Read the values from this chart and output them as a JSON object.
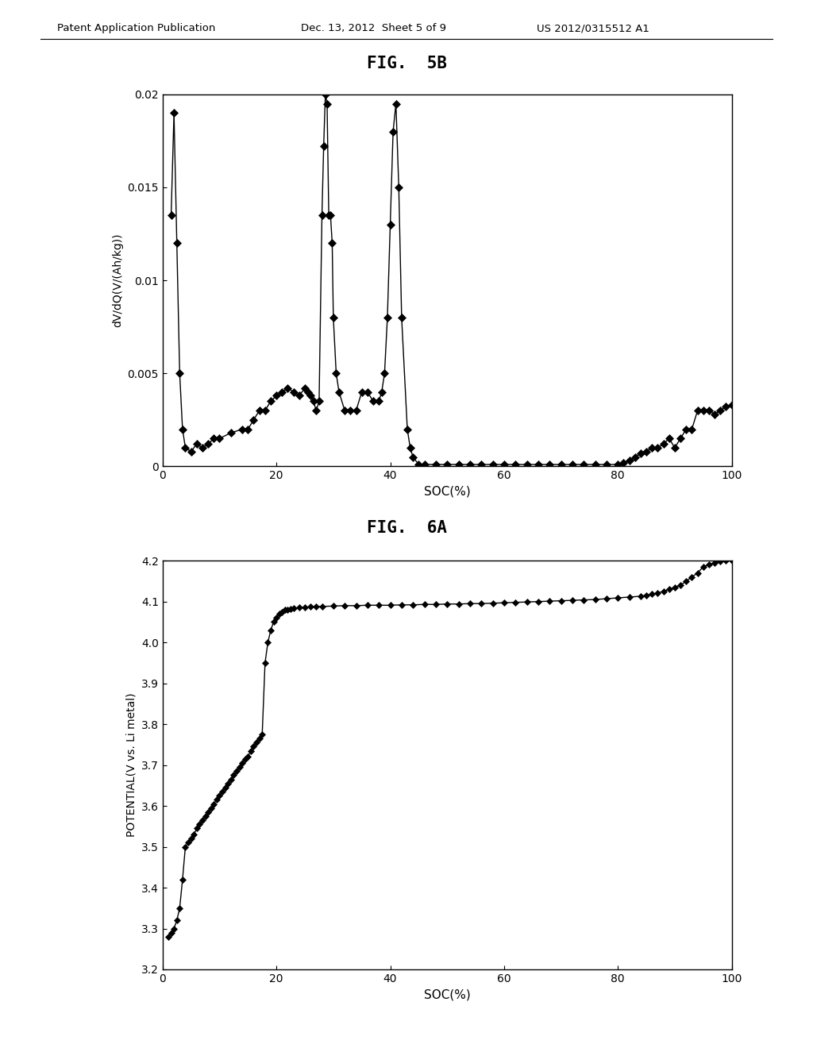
{
  "fig5b_title": "FIG.  5B",
  "fig6a_title": "FIG.  6A",
  "header_left": "Patent Application Publication",
  "header_mid": "Dec. 13, 2012  Sheet 5 of 9",
  "header_right": "US 2012/0315512 A1",
  "fig5b_xlabel": "SOC(%)",
  "fig5b_ylabel": "dV/dQ(V/(Ah/kg))",
  "fig5b_xlim": [
    0,
    100
  ],
  "fig5b_ylim": [
    0,
    0.02
  ],
  "fig5b_yticks": [
    0,
    0.005,
    0.01,
    0.015,
    0.02
  ],
  "fig5b_xticks": [
    0,
    20,
    40,
    60,
    80,
    100
  ],
  "fig6a_xlabel": "SOC(%)",
  "fig6a_ylabel": "POTENTIAL(V vs. Li metal)",
  "fig6a_xlim": [
    0,
    100
  ],
  "fig6a_ylim": [
    3.2,
    4.2
  ],
  "fig6a_yticks": [
    3.2,
    3.3,
    3.4,
    3.5,
    3.6,
    3.7,
    3.8,
    3.9,
    4.0,
    4.1,
    4.2
  ],
  "fig6a_xticks": [
    0,
    20,
    40,
    60,
    80,
    100
  ],
  "background_color": "#ffffff",
  "line_color": "#000000",
  "marker_color": "#000000",
  "text_color": "#000000",
  "fig5b_data": [
    [
      1.5,
      0.0135
    ],
    [
      2.0,
      0.019
    ],
    [
      2.5,
      0.012
    ],
    [
      3.0,
      0.005
    ],
    [
      3.5,
      0.002
    ],
    [
      4.0,
      0.001
    ],
    [
      5.0,
      0.0008
    ],
    [
      6.0,
      0.0012
    ],
    [
      7.0,
      0.001
    ],
    [
      8.0,
      0.0012
    ],
    [
      9.0,
      0.0015
    ],
    [
      10.0,
      0.0015
    ],
    [
      12.0,
      0.0018
    ],
    [
      14.0,
      0.002
    ],
    [
      15.0,
      0.002
    ],
    [
      16.0,
      0.0025
    ],
    [
      17.0,
      0.003
    ],
    [
      18.0,
      0.003
    ],
    [
      19.0,
      0.0035
    ],
    [
      20.0,
      0.0038
    ],
    [
      21.0,
      0.004
    ],
    [
      22.0,
      0.0042
    ],
    [
      23.0,
      0.004
    ],
    [
      24.0,
      0.0038
    ],
    [
      25.0,
      0.0042
    ],
    [
      25.5,
      0.004
    ],
    [
      26.0,
      0.0038
    ],
    [
      26.5,
      0.0035
    ],
    [
      27.0,
      0.003
    ],
    [
      27.5,
      0.0035
    ],
    [
      28.0,
      0.0135
    ],
    [
      28.3,
      0.0172
    ],
    [
      28.6,
      0.02
    ],
    [
      28.9,
      0.0195
    ],
    [
      29.2,
      0.0135
    ],
    [
      29.5,
      0.0135
    ],
    [
      29.8,
      0.012
    ],
    [
      30.0,
      0.008
    ],
    [
      30.5,
      0.005
    ],
    [
      31.0,
      0.004
    ],
    [
      32.0,
      0.003
    ],
    [
      33.0,
      0.003
    ],
    [
      34.0,
      0.003
    ],
    [
      35.0,
      0.004
    ],
    [
      36.0,
      0.004
    ],
    [
      37.0,
      0.0035
    ],
    [
      38.0,
      0.0035
    ],
    [
      38.5,
      0.004
    ],
    [
      39.0,
      0.005
    ],
    [
      39.5,
      0.008
    ],
    [
      40.0,
      0.013
    ],
    [
      40.5,
      0.018
    ],
    [
      41.0,
      0.0195
    ],
    [
      41.5,
      0.015
    ],
    [
      42.0,
      0.008
    ],
    [
      43.0,
      0.002
    ],
    [
      43.5,
      0.001
    ],
    [
      44.0,
      0.0005
    ],
    [
      45.0,
      0.0001
    ],
    [
      46.0,
      0.0001
    ],
    [
      48.0,
      0.0001
    ],
    [
      50.0,
      0.0001
    ],
    [
      52.0,
      0.0001
    ],
    [
      54.0,
      0.0001
    ],
    [
      56.0,
      0.0001
    ],
    [
      58.0,
      0.0001
    ],
    [
      60.0,
      0.0001
    ],
    [
      62.0,
      0.0001
    ],
    [
      64.0,
      0.0001
    ],
    [
      66.0,
      0.0001
    ],
    [
      68.0,
      0.0001
    ],
    [
      70.0,
      0.0001
    ],
    [
      72.0,
      0.0001
    ],
    [
      74.0,
      0.0001
    ],
    [
      76.0,
      0.0001
    ],
    [
      78.0,
      0.0001
    ],
    [
      80.0,
      0.0001
    ],
    [
      81.0,
      0.0002
    ],
    [
      82.0,
      0.0003
    ],
    [
      83.0,
      0.0005
    ],
    [
      84.0,
      0.0007
    ],
    [
      85.0,
      0.0008
    ],
    [
      86.0,
      0.001
    ],
    [
      87.0,
      0.001
    ],
    [
      88.0,
      0.0012
    ],
    [
      89.0,
      0.0015
    ],
    [
      90.0,
      0.001
    ],
    [
      91.0,
      0.0015
    ],
    [
      92.0,
      0.002
    ],
    [
      93.0,
      0.002
    ],
    [
      94.0,
      0.003
    ],
    [
      95.0,
      0.003
    ],
    [
      96.0,
      0.003
    ],
    [
      97.0,
      0.0028
    ],
    [
      98.0,
      0.003
    ],
    [
      99.0,
      0.0032
    ],
    [
      100.0,
      0.0033
    ]
  ],
  "fig6a_data": [
    [
      1.0,
      3.28
    ],
    [
      1.5,
      3.29
    ],
    [
      2.0,
      3.3
    ],
    [
      2.5,
      3.32
    ],
    [
      3.0,
      3.35
    ],
    [
      3.5,
      3.42
    ],
    [
      4.0,
      3.5
    ],
    [
      4.5,
      3.51
    ],
    [
      5.0,
      3.52
    ],
    [
      5.5,
      3.53
    ],
    [
      6.0,
      3.545
    ],
    [
      6.5,
      3.555
    ],
    [
      7.0,
      3.565
    ],
    [
      7.5,
      3.575
    ],
    [
      8.0,
      3.585
    ],
    [
      8.5,
      3.595
    ],
    [
      9.0,
      3.605
    ],
    [
      9.5,
      3.615
    ],
    [
      10.0,
      3.625
    ],
    [
      10.5,
      3.635
    ],
    [
      11.0,
      3.645
    ],
    [
      11.5,
      3.655
    ],
    [
      12.0,
      3.665
    ],
    [
      12.5,
      3.675
    ],
    [
      13.0,
      3.685
    ],
    [
      13.5,
      3.695
    ],
    [
      14.0,
      3.705
    ],
    [
      14.5,
      3.715
    ],
    [
      15.0,
      3.72
    ],
    [
      15.5,
      3.735
    ],
    [
      16.0,
      3.745
    ],
    [
      16.5,
      3.755
    ],
    [
      17.0,
      3.765
    ],
    [
      17.5,
      3.775
    ],
    [
      18.0,
      3.95
    ],
    [
      18.5,
      4.0
    ],
    [
      19.0,
      4.03
    ],
    [
      19.5,
      4.05
    ],
    [
      20.0,
      4.06
    ],
    [
      20.5,
      4.07
    ],
    [
      21.0,
      4.075
    ],
    [
      21.5,
      4.08
    ],
    [
      22.0,
      4.08
    ],
    [
      22.5,
      4.082
    ],
    [
      23.0,
      4.083
    ],
    [
      24.0,
      4.085
    ],
    [
      25.0,
      4.086
    ],
    [
      26.0,
      4.087
    ],
    [
      27.0,
      4.088
    ],
    [
      28.0,
      4.088
    ],
    [
      30.0,
      4.089
    ],
    [
      32.0,
      4.09
    ],
    [
      34.0,
      4.09
    ],
    [
      36.0,
      4.091
    ],
    [
      38.0,
      4.091
    ],
    [
      40.0,
      4.091
    ],
    [
      42.0,
      4.092
    ],
    [
      44.0,
      4.092
    ],
    [
      46.0,
      4.093
    ],
    [
      48.0,
      4.093
    ],
    [
      50.0,
      4.094
    ],
    [
      52.0,
      4.094
    ],
    [
      54.0,
      4.095
    ],
    [
      56.0,
      4.095
    ],
    [
      58.0,
      4.096
    ],
    [
      60.0,
      4.097
    ],
    [
      62.0,
      4.098
    ],
    [
      64.0,
      4.099
    ],
    [
      66.0,
      4.1
    ],
    [
      68.0,
      4.101
    ],
    [
      70.0,
      4.102
    ],
    [
      72.0,
      4.103
    ],
    [
      74.0,
      4.104
    ],
    [
      76.0,
      4.105
    ],
    [
      78.0,
      4.107
    ],
    [
      80.0,
      4.109
    ],
    [
      82.0,
      4.111
    ],
    [
      84.0,
      4.113
    ],
    [
      85.0,
      4.115
    ],
    [
      86.0,
      4.118
    ],
    [
      87.0,
      4.121
    ],
    [
      88.0,
      4.125
    ],
    [
      89.0,
      4.13
    ],
    [
      90.0,
      4.135
    ],
    [
      91.0,
      4.14
    ],
    [
      92.0,
      4.15
    ],
    [
      93.0,
      4.16
    ],
    [
      94.0,
      4.17
    ],
    [
      95.0,
      4.185
    ],
    [
      96.0,
      4.19
    ],
    [
      97.0,
      4.195
    ],
    [
      98.0,
      4.198
    ],
    [
      99.0,
      4.2
    ],
    [
      100.0,
      4.2
    ]
  ]
}
